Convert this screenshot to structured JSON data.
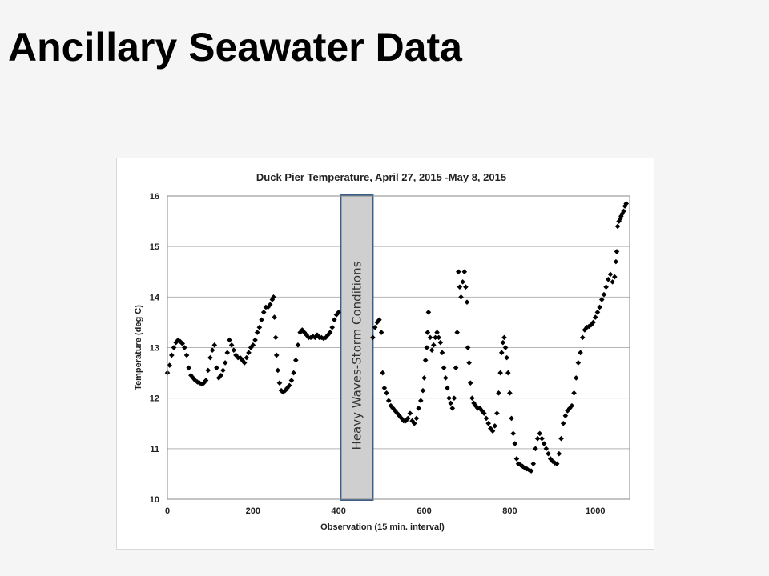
{
  "slide": {
    "title": "Ancillary Seawater Data"
  },
  "chart_data": {
    "type": "scatter",
    "title": "Duck Pier Temperature, April 27, 2015 -May 8, 2015",
    "xlabel": "Observation (15 min. interval)",
    "ylabel": "Temperature (deg C)",
    "xlim": [
      0,
      1080
    ],
    "ylim": [
      10,
      16
    ],
    "xticks": [
      "0",
      "200",
      "400",
      "600",
      "800",
      "1000"
    ],
    "yticks": [
      "10",
      "11",
      "12",
      "13",
      "14",
      "15",
      "16"
    ],
    "grid": "horizontal",
    "marker": "diamond",
    "marker_color": "#000000",
    "annotation": {
      "label": "Heavy Waves-Storm Conditions",
      "x_range": [
        405,
        480
      ],
      "fill": "#cfcfcf",
      "stroke": "#3a5f8a"
    },
    "series": [
      {
        "points": [
          [
            0,
            12.5
          ],
          [
            5,
            12.65
          ],
          [
            10,
            12.85
          ],
          [
            15,
            13.0
          ],
          [
            20,
            13.1
          ],
          [
            25,
            13.15
          ],
          [
            30,
            13.12
          ],
          [
            35,
            13.08
          ],
          [
            40,
            13.0
          ],
          [
            45,
            12.85
          ],
          [
            50,
            12.6
          ],
          [
            55,
            12.45
          ],
          [
            60,
            12.4
          ],
          [
            65,
            12.35
          ],
          [
            70,
            12.32
          ],
          [
            75,
            12.3
          ],
          [
            80,
            12.28
          ],
          [
            85,
            12.3
          ],
          [
            90,
            12.35
          ],
          [
            95,
            12.55
          ],
          [
            100,
            12.8
          ],
          [
            105,
            12.95
          ],
          [
            110,
            13.05
          ],
          [
            115,
            12.6
          ],
          [
            120,
            12.4
          ],
          [
            125,
            12.45
          ],
          [
            130,
            12.55
          ],
          [
            135,
            12.7
          ],
          [
            140,
            12.9
          ],
          [
            145,
            13.15
          ],
          [
            150,
            13.05
          ],
          [
            155,
            12.95
          ],
          [
            160,
            12.85
          ],
          [
            165,
            12.8
          ],
          [
            170,
            12.8
          ],
          [
            175,
            12.75
          ],
          [
            180,
            12.7
          ],
          [
            185,
            12.8
          ],
          [
            190,
            12.9
          ],
          [
            195,
            13.0
          ],
          [
            200,
            13.05
          ],
          [
            205,
            13.15
          ],
          [
            210,
            13.3
          ],
          [
            215,
            13.4
          ],
          [
            220,
            13.55
          ],
          [
            225,
            13.7
          ],
          [
            230,
            13.8
          ],
          [
            235,
            13.8
          ],
          [
            240,
            13.85
          ],
          [
            245,
            13.95
          ],
          [
            248,
            14.0
          ],
          [
            250,
            13.6
          ],
          [
            253,
            13.2
          ],
          [
            255,
            12.85
          ],
          [
            258,
            12.55
          ],
          [
            262,
            12.3
          ],
          [
            266,
            12.15
          ],
          [
            270,
            12.12
          ],
          [
            275,
            12.15
          ],
          [
            280,
            12.2
          ],
          [
            285,
            12.25
          ],
          [
            290,
            12.35
          ],
          [
            295,
            12.5
          ],
          [
            300,
            12.75
          ],
          [
            305,
            13.05
          ],
          [
            310,
            13.3
          ],
          [
            315,
            13.35
          ],
          [
            320,
            13.3
          ],
          [
            325,
            13.25
          ],
          [
            330,
            13.2
          ],
          [
            335,
            13.2
          ],
          [
            340,
            13.22
          ],
          [
            345,
            13.2
          ],
          [
            350,
            13.25
          ],
          [
            355,
            13.2
          ],
          [
            360,
            13.2
          ],
          [
            365,
            13.18
          ],
          [
            370,
            13.2
          ],
          [
            375,
            13.25
          ],
          [
            380,
            13.3
          ],
          [
            385,
            13.4
          ],
          [
            390,
            13.55
          ],
          [
            395,
            13.65
          ],
          [
            400,
            13.7
          ],
          [
            480,
            13.2
          ],
          [
            485,
            13.4
          ],
          [
            490,
            13.5
          ],
          [
            495,
            13.55
          ],
          [
            500,
            13.3
          ],
          [
            503,
            12.5
          ],
          [
            507,
            12.2
          ],
          [
            512,
            12.1
          ],
          [
            517,
            11.95
          ],
          [
            522,
            11.85
          ],
          [
            527,
            11.8
          ],
          [
            532,
            11.75
          ],
          [
            537,
            11.7
          ],
          [
            542,
            11.65
          ],
          [
            547,
            11.6
          ],
          [
            552,
            11.55
          ],
          [
            557,
            11.55
          ],
          [
            562,
            11.6
          ],
          [
            567,
            11.7
          ],
          [
            572,
            11.55
          ],
          [
            577,
            11.5
          ],
          [
            582,
            11.6
          ],
          [
            587,
            11.8
          ],
          [
            592,
            11.95
          ],
          [
            597,
            12.15
          ],
          [
            600,
            12.4
          ],
          [
            603,
            12.75
          ],
          [
            606,
            13.0
          ],
          [
            608,
            13.3
          ],
          [
            610,
            13.7
          ],
          [
            614,
            13.2
          ],
          [
            618,
            12.95
          ],
          [
            622,
            13.05
          ],
          [
            626,
            13.2
          ],
          [
            630,
            13.3
          ],
          [
            634,
            13.2
          ],
          [
            638,
            13.1
          ],
          [
            642,
            12.9
          ],
          [
            646,
            12.6
          ],
          [
            650,
            12.4
          ],
          [
            654,
            12.2
          ],
          [
            658,
            12.0
          ],
          [
            662,
            11.9
          ],
          [
            666,
            11.8
          ],
          [
            670,
            12.0
          ],
          [
            674,
            12.6
          ],
          [
            677,
            13.3
          ],
          [
            680,
            14.5
          ],
          [
            683,
            14.2
          ],
          [
            686,
            14.0
          ],
          [
            690,
            14.3
          ],
          [
            694,
            14.5
          ],
          [
            697,
            14.2
          ],
          [
            700,
            13.9
          ],
          [
            702,
            13.0
          ],
          [
            705,
            12.7
          ],
          [
            708,
            12.3
          ],
          [
            712,
            12.0
          ],
          [
            716,
            11.9
          ],
          [
            720,
            11.85
          ],
          [
            725,
            11.8
          ],
          [
            730,
            11.8
          ],
          [
            735,
            11.75
          ],
          [
            740,
            11.7
          ],
          [
            745,
            11.6
          ],
          [
            750,
            11.5
          ],
          [
            755,
            11.4
          ],
          [
            760,
            11.35
          ],
          [
            765,
            11.45
          ],
          [
            770,
            11.7
          ],
          [
            774,
            12.1
          ],
          [
            778,
            12.5
          ],
          [
            781,
            12.9
          ],
          [
            784,
            13.1
          ],
          [
            787,
            13.2
          ],
          [
            790,
            13.0
          ],
          [
            793,
            12.8
          ],
          [
            796,
            12.5
          ],
          [
            800,
            12.1
          ],
          [
            804,
            11.6
          ],
          [
            808,
            11.3
          ],
          [
            812,
            11.1
          ],
          [
            816,
            10.8
          ],
          [
            820,
            10.7
          ],
          [
            825,
            10.68
          ],
          [
            830,
            10.65
          ],
          [
            835,
            10.62
          ],
          [
            840,
            10.6
          ],
          [
            845,
            10.58
          ],
          [
            850,
            10.56
          ],
          [
            855,
            10.7
          ],
          [
            860,
            11.0
          ],
          [
            865,
            11.2
          ],
          [
            870,
            11.3
          ],
          [
            875,
            11.2
          ],
          [
            880,
            11.1
          ],
          [
            885,
            11.0
          ],
          [
            890,
            10.9
          ],
          [
            895,
            10.8
          ],
          [
            900,
            10.75
          ],
          [
            905,
            10.72
          ],
          [
            910,
            10.7
          ],
          [
            915,
            10.9
          ],
          [
            920,
            11.2
          ],
          [
            925,
            11.5
          ],
          [
            930,
            11.65
          ],
          [
            935,
            11.75
          ],
          [
            940,
            11.8
          ],
          [
            945,
            11.85
          ],
          [
            950,
            12.1
          ],
          [
            955,
            12.4
          ],
          [
            960,
            12.7
          ],
          [
            965,
            12.9
          ],
          [
            970,
            13.2
          ],
          [
            975,
            13.35
          ],
          [
            980,
            13.4
          ],
          [
            985,
            13.42
          ],
          [
            990,
            13.45
          ],
          [
            995,
            13.5
          ],
          [
            1000,
            13.6
          ],
          [
            1005,
            13.7
          ],
          [
            1010,
            13.8
          ],
          [
            1015,
            13.95
          ],
          [
            1020,
            14.05
          ],
          [
            1025,
            14.2
          ],
          [
            1030,
            14.35
          ],
          [
            1035,
            14.45
          ],
          [
            1040,
            14.3
          ],
          [
            1045,
            14.4
          ],
          [
            1048,
            14.7
          ],
          [
            1050,
            14.9
          ],
          [
            1052,
            15.4
          ],
          [
            1055,
            15.5
          ],
          [
            1058,
            15.55
          ],
          [
            1060,
            15.6
          ],
          [
            1063,
            15.65
          ],
          [
            1066,
            15.7
          ],
          [
            1069,
            15.8
          ],
          [
            1072,
            15.85
          ]
        ]
      }
    ]
  }
}
